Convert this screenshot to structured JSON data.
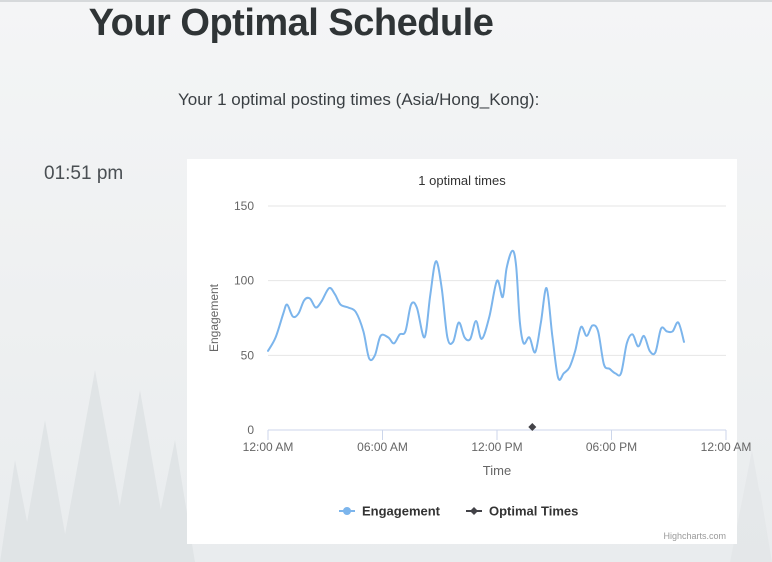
{
  "page": {
    "title": "Your Optimal Schedule",
    "subtitle": "Your 1 optimal posting times (Asia/Hong_Kong):"
  },
  "schedule": {
    "times": [
      "01:51 pm"
    ]
  },
  "chart_data": {
    "type": "line",
    "title": "1 optimal times",
    "xlabel": "Time",
    "ylabel": "Engagement",
    "ylim": [
      0,
      150
    ],
    "yticks": [
      0,
      50,
      100,
      150
    ],
    "x_tick_labels": [
      {
        "hours": 0,
        "label": "12:00 AM"
      },
      {
        "hours": 6,
        "label": "06:00 AM"
      },
      {
        "hours": 12,
        "label": "12:00 PM"
      },
      {
        "hours": 18,
        "label": "06:00 PM"
      },
      {
        "hours": 24,
        "label": "12:00 AM"
      }
    ],
    "grid": true,
    "legend_position": "bottom-center",
    "credit": "Highcharts.com",
    "series": [
      {
        "name": "Engagement",
        "color": "#7cb5ec",
        "marker": "circle",
        "points": [
          [
            0.0,
            53
          ],
          [
            0.4,
            62
          ],
          [
            0.8,
            78
          ],
          [
            1.0,
            84
          ],
          [
            1.3,
            76
          ],
          [
            1.6,
            78
          ],
          [
            1.9,
            87
          ],
          [
            2.2,
            88
          ],
          [
            2.5,
            82
          ],
          [
            2.8,
            86
          ],
          [
            3.2,
            95
          ],
          [
            3.5,
            91
          ],
          [
            3.8,
            84
          ],
          [
            4.2,
            82
          ],
          [
            4.6,
            79
          ],
          [
            5.0,
            66
          ],
          [
            5.3,
            48
          ],
          [
            5.6,
            50
          ],
          [
            5.9,
            63
          ],
          [
            6.3,
            62
          ],
          [
            6.6,
            58
          ],
          [
            6.9,
            64
          ],
          [
            7.2,
            66
          ],
          [
            7.5,
            84
          ],
          [
            7.8,
            82
          ],
          [
            8.2,
            62
          ],
          [
            8.5,
            90
          ],
          [
            8.8,
            113
          ],
          [
            9.1,
            95
          ],
          [
            9.4,
            62
          ],
          [
            9.7,
            59
          ],
          [
            10.0,
            72
          ],
          [
            10.3,
            62
          ],
          [
            10.6,
            61
          ],
          [
            10.9,
            73
          ],
          [
            11.2,
            61
          ],
          [
            11.6,
            76
          ],
          [
            12.0,
            100
          ],
          [
            12.3,
            89
          ],
          [
            12.5,
            108
          ],
          [
            12.8,
            120
          ],
          [
            13.0,
            110
          ],
          [
            13.2,
            72
          ],
          [
            13.4,
            58
          ],
          [
            13.7,
            62
          ],
          [
            14.0,
            52
          ],
          [
            14.3,
            72
          ],
          [
            14.6,
            95
          ],
          [
            14.9,
            63
          ],
          [
            15.2,
            35
          ],
          [
            15.5,
            38
          ],
          [
            15.8,
            42
          ],
          [
            16.1,
            53
          ],
          [
            16.4,
            69
          ],
          [
            16.7,
            63
          ],
          [
            17.0,
            70
          ],
          [
            17.3,
            66
          ],
          [
            17.6,
            44
          ],
          [
            17.9,
            41
          ],
          [
            18.2,
            38
          ],
          [
            18.5,
            38
          ],
          [
            18.8,
            58
          ],
          [
            19.1,
            64
          ],
          [
            19.4,
            56
          ],
          [
            19.7,
            63
          ],
          [
            20.0,
            53
          ],
          [
            20.3,
            52
          ],
          [
            20.6,
            68
          ],
          [
            20.9,
            66
          ],
          [
            21.2,
            66
          ],
          [
            21.5,
            72
          ],
          [
            21.8,
            59
          ]
        ]
      },
      {
        "name": "Optimal Times",
        "color": "#434348",
        "marker": "diamond",
        "points": [
          [
            13.85,
            0
          ]
        ]
      }
    ]
  }
}
